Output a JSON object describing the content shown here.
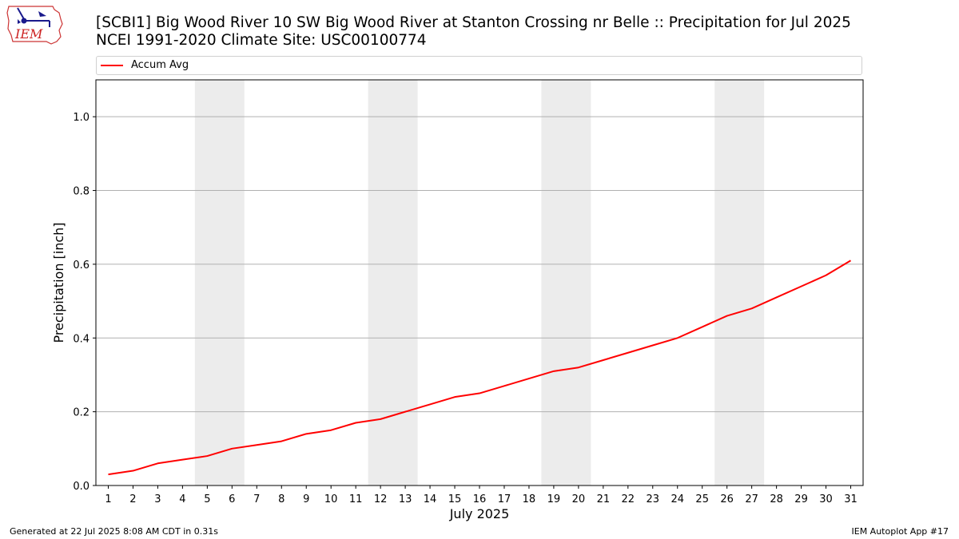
{
  "header": {
    "title": "[SCBI1] Big Wood River 10 SW Big Wood River at Stanton Crossing nr Belle :: Precipitation for Jul 2025",
    "subtitle": "NCEI 1991-2020 Climate Site: USC00100774",
    "logo_text": "IEM"
  },
  "legend": {
    "items": [
      {
        "label": "Accum Avg",
        "color": "#ff0000"
      }
    ],
    "placement": "top"
  },
  "footer": {
    "left": "Generated at 22 Jul 2025 8:08 AM CDT in 0.31s",
    "right": "IEM Autoplot App #17"
  },
  "chart_data": {
    "type": "line",
    "title": "[SCBI1] Big Wood River 10 SW Big Wood River at Stanton Crossing nr Belle :: Precipitation for Jul 2025",
    "xlabel": "July 2025",
    "ylabel": "Precipitation [inch]",
    "x": [
      1,
      2,
      3,
      4,
      5,
      6,
      7,
      8,
      9,
      10,
      11,
      12,
      13,
      14,
      15,
      16,
      17,
      18,
      19,
      20,
      21,
      22,
      23,
      24,
      25,
      26,
      27,
      28,
      29,
      30,
      31
    ],
    "xlim": [
      0.5,
      31.5
    ],
    "ylim": [
      0,
      1.1
    ],
    "yticks": [
      0.0,
      0.2,
      0.4,
      0.6,
      0.8,
      1.0
    ],
    "ytick_labels": [
      "0.0",
      "0.2",
      "0.4",
      "0.6",
      "0.8",
      "1.0"
    ],
    "grid": "y",
    "weekend_shading": [
      [
        5,
        6
      ],
      [
        12,
        13
      ],
      [
        19,
        20
      ],
      [
        26,
        27
      ]
    ],
    "shading_color": "#ececec",
    "series": [
      {
        "name": "Accum Avg",
        "color": "#ff0000",
        "values": [
          0.03,
          0.04,
          0.06,
          0.07,
          0.08,
          0.1,
          0.11,
          0.12,
          0.14,
          0.15,
          0.17,
          0.18,
          0.2,
          0.22,
          0.24,
          0.25,
          0.27,
          0.29,
          0.31,
          0.32,
          0.34,
          0.36,
          0.38,
          0.4,
          0.43,
          0.46,
          0.48,
          0.51,
          0.54,
          0.57,
          0.61
        ]
      }
    ]
  }
}
